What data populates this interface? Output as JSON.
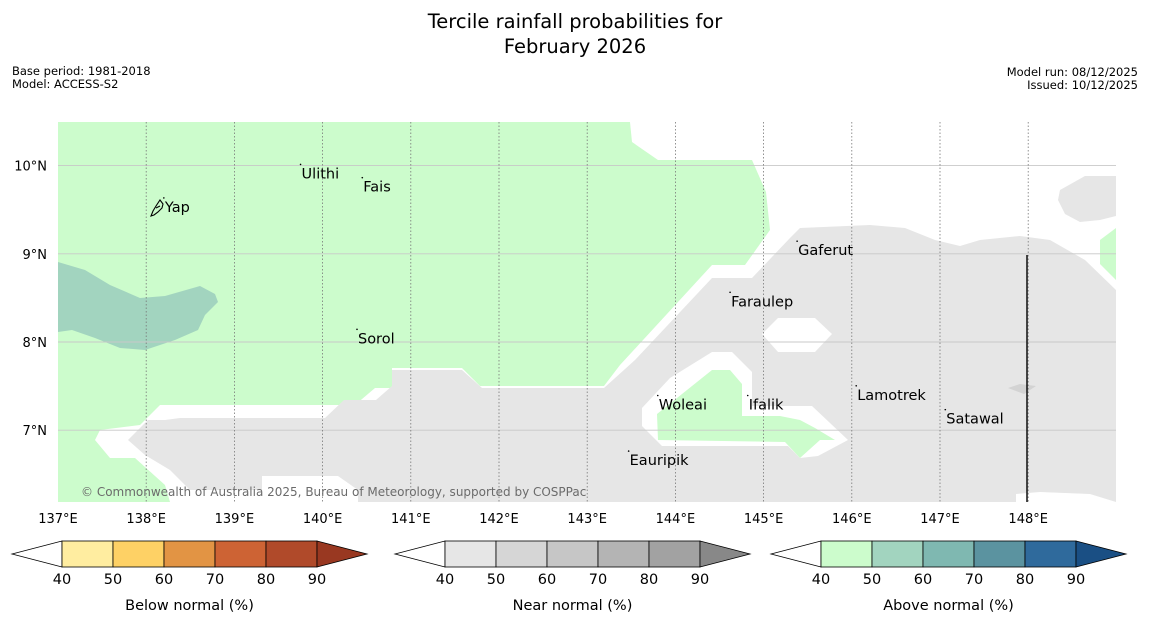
{
  "title": {
    "line1": "Tercile rainfall probabilities for",
    "line2": "February 2026"
  },
  "meta_left": {
    "base_period": "Base period: 1981-2018",
    "model": "Model: ACCESS-S2"
  },
  "meta_right": {
    "model_run": "Model run: 08/12/2025",
    "issued": "Issued: 10/12/2025"
  },
  "map": {
    "lon_range": [
      137,
      149
    ],
    "lat_range": [
      6.2,
      10.5
    ],
    "lon_ticks": [
      "137°E",
      "138°E",
      "139°E",
      "140°E",
      "141°E",
      "142°E",
      "143°E",
      "144°E",
      "145°E",
      "146°E",
      "147°E",
      "148°E"
    ],
    "lat_ticks": [
      "10°N",
      "9°N",
      "8°N",
      "7°N"
    ],
    "places": [
      {
        "name": "Ulithi",
        "lon": 139.75,
        "lat": 9.9
      },
      {
        "name": "Fais",
        "lon": 140.45,
        "lat": 9.75
      },
      {
        "name": "Yap",
        "lon": 138.2,
        "lat": 9.52
      },
      {
        "name": "Gaferut",
        "lon": 145.38,
        "lat": 9.03
      },
      {
        "name": "Faraulep",
        "lon": 144.62,
        "lat": 8.45
      },
      {
        "name": "Sorol",
        "lon": 140.39,
        "lat": 8.03
      },
      {
        "name": "Lamotrek",
        "lon": 146.05,
        "lat": 7.39
      },
      {
        "name": "Woleai",
        "lon": 143.8,
        "lat": 7.28
      },
      {
        "name": "Ifalik",
        "lon": 144.82,
        "lat": 7.28
      },
      {
        "name": "Satawal",
        "lon": 147.06,
        "lat": 7.12
      },
      {
        "name": "Eauripik",
        "lon": 143.47,
        "lat": 6.65
      }
    ],
    "copyright": "© Commonwealth of Australia 2025, Bureau of Meteorology, supported by COSPPac",
    "colors": {
      "above_50": "#ccfccc",
      "above_60": "#a2d4bf",
      "near_50": "#e6e6e6",
      "gridline": "#c8c8c8",
      "lon_grid": "#777777"
    }
  },
  "colorbars": [
    {
      "label": "Below normal (%)",
      "ticks": [
        "40",
        "50",
        "60",
        "70",
        "80",
        "90"
      ],
      "colors": [
        "#ffffff",
        "#ffeda0",
        "#fed165",
        "#e29444",
        "#cd6334",
        "#b04a2a",
        "#993821"
      ]
    },
    {
      "label": "Near normal (%)",
      "ticks": [
        "40",
        "50",
        "60",
        "70",
        "80",
        "90"
      ],
      "colors": [
        "#ffffff",
        "#e6e6e6",
        "#d6d6d6",
        "#c6c6c6",
        "#b4b4b4",
        "#a2a2a2",
        "#888888"
      ]
    },
    {
      "label": "Above normal (%)",
      "ticks": [
        "40",
        "50",
        "60",
        "70",
        "80",
        "90"
      ],
      "colors": [
        "#ffffff",
        "#ccfccc",
        "#a2d4bf",
        "#7fb8b1",
        "#5b93a0",
        "#2f6a9c",
        "#1a4f84"
      ]
    }
  ]
}
